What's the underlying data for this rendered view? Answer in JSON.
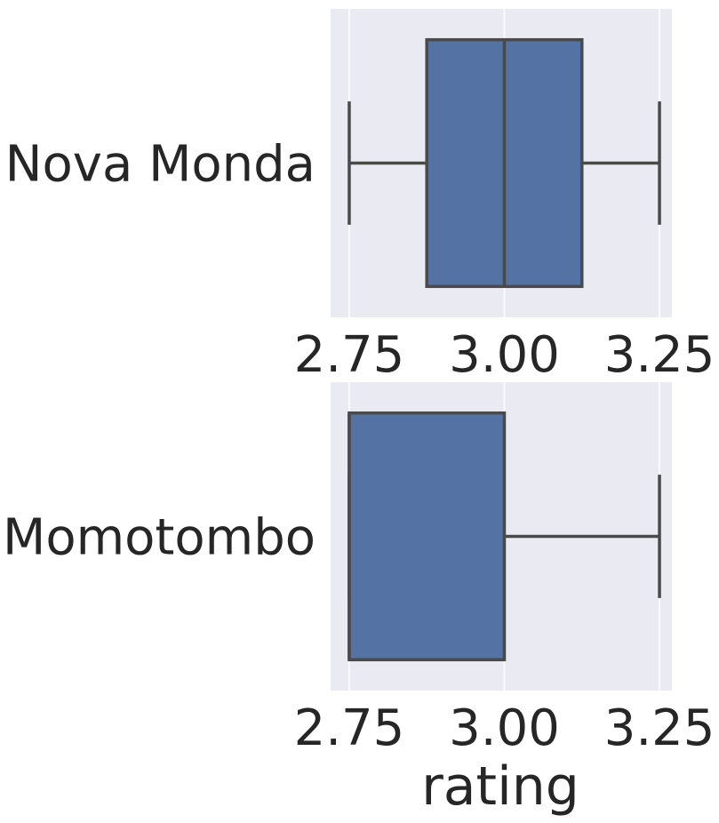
{
  "chart_data": {
    "type": "boxplot",
    "xlabel": "rating",
    "xlim": [
      2.72,
      3.27
    ],
    "xticks": [
      2.75,
      3.0,
      3.25
    ],
    "xtick_labels": [
      "2.75",
      "3.00",
      "3.25"
    ],
    "grid": true,
    "colors": {
      "plot_bg": "#eaeaf2",
      "grid": "#ffffff",
      "box_fill": "#5572a4",
      "line": "#4a4a4a"
    },
    "panels": [
      {
        "category": "Nova Monda",
        "whisker_low": 2.75,
        "q1": 2.875,
        "median": 3.0,
        "q3": 3.125,
        "whisker_high": 3.25
      },
      {
        "category": "Momotombo",
        "whisker_low": 2.75,
        "q1": 2.75,
        "median": 2.75,
        "q3": 3.0,
        "whisker_high": 3.25
      }
    ]
  }
}
